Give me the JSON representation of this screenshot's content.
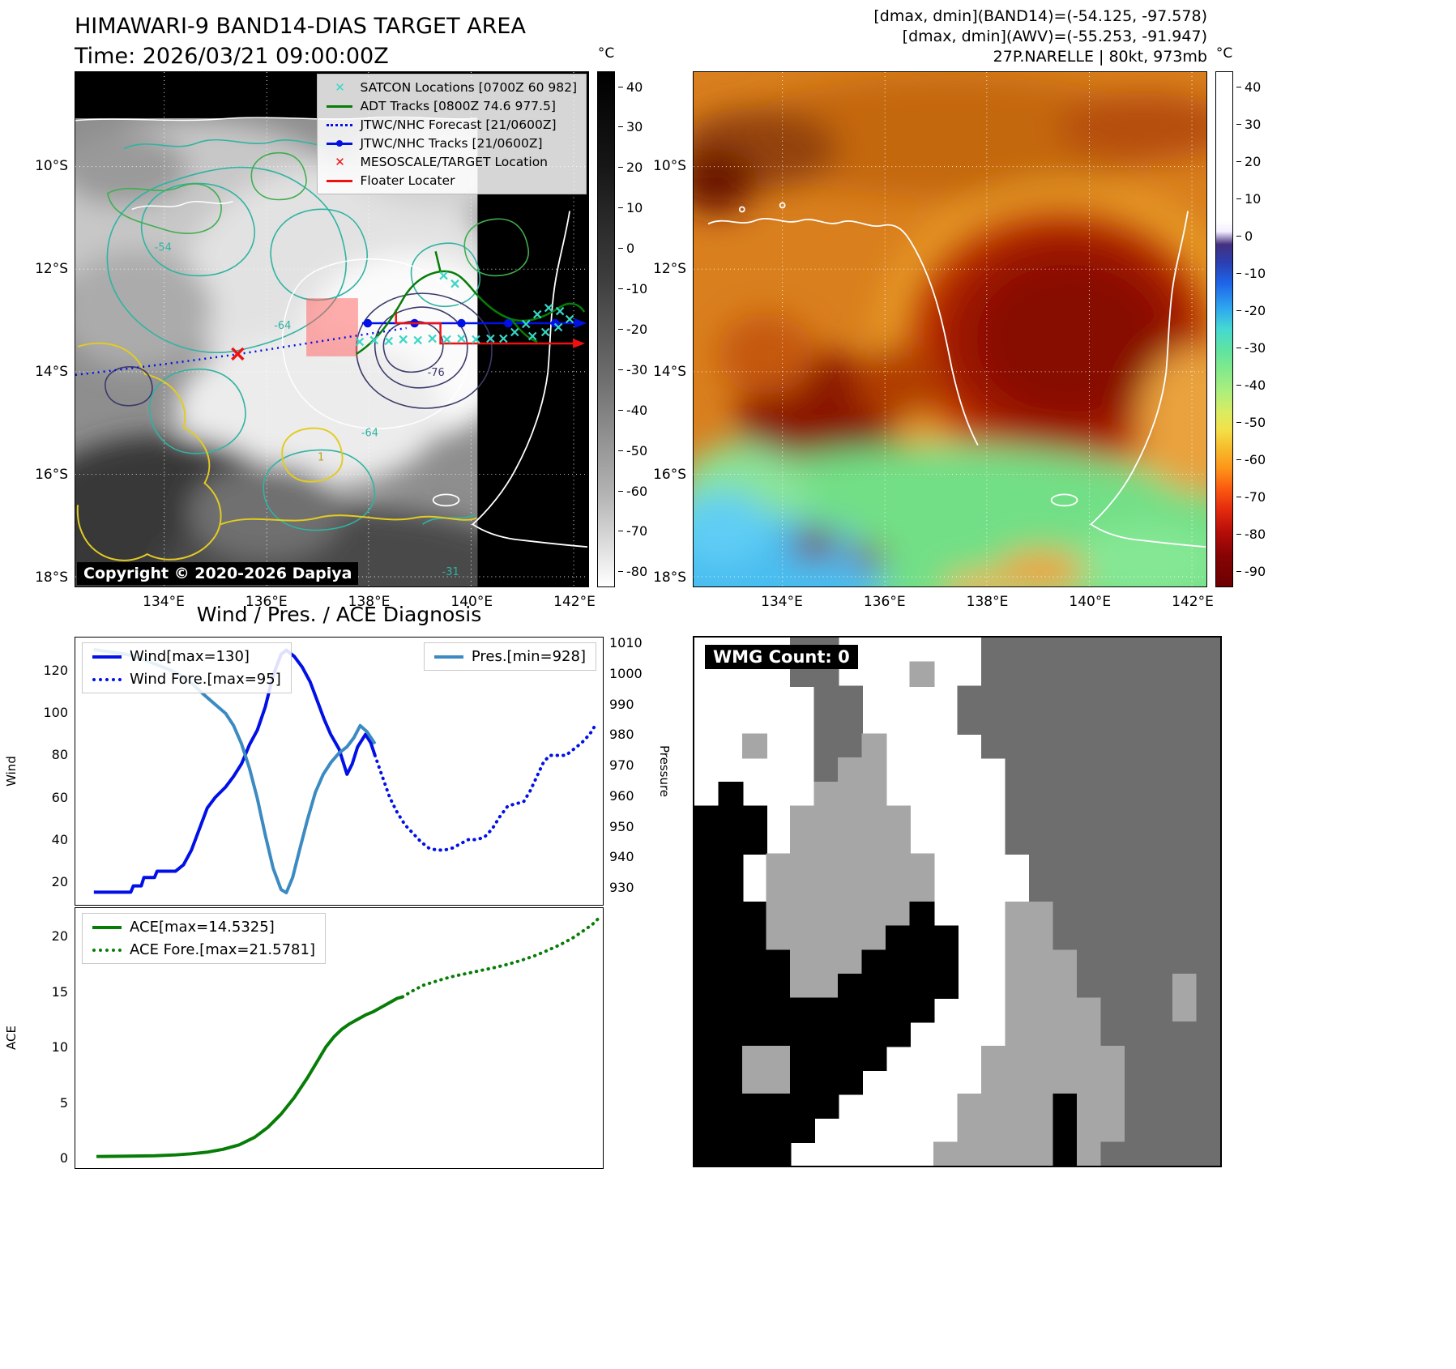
{
  "colors": {
    "wind": "#0010e6",
    "pressure": "#3b8bc2",
    "ace": "#077d07",
    "satcon": "#3ad6c6",
    "adt": "#077d07",
    "forecast": "#0010e6",
    "floater": "#ee1111",
    "target_box": "#ff5c5c"
  },
  "icons": {
    "x_marker": "✕"
  },
  "top_left": {
    "title": "HIMAWARI-9 BAND14-DIAS TARGET AREA",
    "subtitle": "Time: 2026/03/21 09:00:00Z",
    "copyright": "Copyright © 2020-2026 Dapiya",
    "legend": [
      "SATCON Locations [0700Z 60 982]",
      "ADT Tracks [0800Z 74.6 977.5]",
      "JTWC/NHC Forecast [21/0600Z]",
      "JTWC/NHC Tracks [21/0600Z]",
      "MESOSCALE/TARGET Location",
      "Floater Locater"
    ],
    "lat_ticks": [
      "10°S",
      "12°S",
      "14°S",
      "16°S",
      "18°S"
    ],
    "lon_ticks": [
      "134°E",
      "136°E",
      "138°E",
      "140°E",
      "142°E"
    ],
    "contour_labels": [
      "-54",
      "-64",
      "-76",
      "-64",
      "-31",
      "1"
    ],
    "colorbar": {
      "unit": "°C",
      "ticks": [
        "40",
        "30",
        "20",
        "10",
        "0",
        "-10",
        "-20",
        "-30",
        "-40",
        "-50",
        "-60",
        "-70",
        "-80"
      ]
    }
  },
  "top_right": {
    "header_lines": [
      "[dmax, dmin](BAND14)=(-54.125, -97.578)",
      "[dmax, dmin](AWV)=(-55.253, -91.947)",
      "27P.NARELLE | 80kt, 973mb"
    ],
    "lat_ticks": [
      "10°S",
      "12°S",
      "14°S",
      "16°S",
      "18°S"
    ],
    "lon_ticks": [
      "134°E",
      "136°E",
      "138°E",
      "140°E",
      "142°E"
    ],
    "colorbar": {
      "unit": "°C",
      "ticks": [
        "40",
        "30",
        "20",
        "10",
        "0",
        "-10",
        "-20",
        "-30",
        "-40",
        "-50",
        "-60",
        "-70",
        "-80",
        "-90"
      ]
    }
  },
  "bottom_left": {
    "title": "Wind / Pres. / ACE Diagnosis"
  },
  "bottom_right": {
    "label": "WMG Count: 0",
    "palette": {
      "W": "#ffffff",
      "L": "#a6a6a6",
      "D": "#6e6e6e",
      "B": "#000000"
    },
    "grid": [
      "WWWWDDWWWWWWDDDDDDDDDD",
      "WWWWDDWWWLWWDDDDDDDDDD",
      "WWWWWDDWWWWDDDDDDDDDDD",
      "WWWWWDDWWWWDDDDDDDDDDD",
      "WWLWWDDLWWWWDDDDDDDDDD",
      "WWWWWDLLWWWWWDDDDDDDDD",
      "WBWWWLLLWWWWWDDDDDDDDD",
      "BBBWLLLLLWWWWDDDDDDDDD",
      "BBBWLLLLLWWWWDDDDDDDDD",
      "BBWLLLLLLLWWWWDDDDDDDD",
      "BBWLLLLLLLWWWWDDDDDDDD",
      "BBBLLLLLLBWWWLLDDDDDDD",
      "BBBLLLLLBBBWWLLDDDDDDD",
      "BBBBLLLBBBBWWLLLDDDDDD",
      "BBBBLLBBBBBWWLLLDDDDLD",
      "BBBBBBBBBBWWWLLLLDDDLD",
      "BBBBBBBBBWWWWLLLLDDDDD",
      "BBLLBBBBWWWWLLLLLLDDDD",
      "BBLLBBBWWWWWLLLLLLDDDD",
      "BBBBBBWWWWWLLLLBLLDDDD",
      "BBBBBWWWWWWLLLLBLLDDDD",
      "BBBBWWWWWWLLLLLBLDDDDD"
    ]
  },
  "chart_data": [
    {
      "type": "line",
      "title": "Wind / Pres. / ACE Diagnosis",
      "ylabel_left": "Wind",
      "ylabel_right": "Pressure",
      "ylim_left": [
        9,
        136
      ],
      "ylim_right": [
        924,
        1012
      ],
      "yticks_left": [
        "120",
        "100",
        "80",
        "60",
        "40",
        "20"
      ],
      "yticks_right": [
        "1010",
        "1000",
        "990",
        "980",
        "970",
        "960",
        "950",
        "940",
        "930"
      ],
      "legend_left": [
        "Wind[max=130]",
        "Wind Fore.[max=95]"
      ],
      "legend_right": [
        "Pres.[min=928]"
      ],
      "grid": false,
      "series": [
        {
          "name": "Wind",
          "color": "#0010e6",
          "style": "solid",
          "axis": "left",
          "width": 4,
          "points": [
            [
              0.035,
              15
            ],
            [
              0.09,
              15
            ],
            [
              0.105,
              15
            ],
            [
              0.11,
              18
            ],
            [
              0.125,
              18
            ],
            [
              0.13,
              22
            ],
            [
              0.15,
              22
            ],
            [
              0.155,
              25
            ],
            [
              0.19,
              25
            ],
            [
              0.205,
              28
            ],
            [
              0.22,
              35
            ],
            [
              0.235,
              45
            ],
            [
              0.25,
              55
            ],
            [
              0.265,
              60
            ],
            [
              0.285,
              65
            ],
            [
              0.3,
              70
            ],
            [
              0.315,
              76
            ],
            [
              0.33,
              85
            ],
            [
              0.345,
              92
            ],
            [
              0.36,
              103
            ],
            [
              0.375,
              118
            ],
            [
              0.39,
              128
            ],
            [
              0.4,
              130
            ],
            [
              0.415,
              127
            ],
            [
              0.43,
              122
            ],
            [
              0.445,
              115
            ],
            [
              0.46,
              105
            ],
            [
              0.472,
              97
            ],
            [
              0.484,
              90
            ],
            [
              0.5,
              83
            ],
            [
              0.515,
              71
            ],
            [
              0.525,
              76
            ],
            [
              0.535,
              84
            ],
            [
              0.55,
              90
            ],
            [
              0.56,
              86
            ],
            [
              0.568,
              80
            ]
          ]
        },
        {
          "name": "Wind Fore.",
          "color": "#0010e6",
          "style": "dotted",
          "axis": "left",
          "width": 4,
          "points": [
            [
              0.568,
              80
            ],
            [
              0.582,
              70
            ],
            [
              0.596,
              60
            ],
            [
              0.61,
              53
            ],
            [
              0.625,
              47
            ],
            [
              0.64,
              43
            ],
            [
              0.655,
              39
            ],
            [
              0.67,
              36
            ],
            [
              0.685,
              35
            ],
            [
              0.7,
              35
            ],
            [
              0.715,
              36
            ],
            [
              0.73,
              38
            ],
            [
              0.745,
              40
            ],
            [
              0.76,
              40
            ],
            [
              0.775,
              41
            ],
            [
              0.79,
              45
            ],
            [
              0.805,
              51
            ],
            [
              0.82,
              56
            ],
            [
              0.835,
              57
            ],
            [
              0.85,
              58
            ],
            [
              0.862,
              63
            ],
            [
              0.875,
              70
            ],
            [
              0.888,
              77
            ],
            [
              0.9,
              80
            ],
            [
              0.915,
              80
            ],
            [
              0.93,
              80
            ],
            [
              0.945,
              83
            ],
            [
              0.96,
              86
            ],
            [
              0.975,
              90
            ],
            [
              0.985,
              94
            ]
          ]
        },
        {
          "name": "Pres.",
          "color": "#3b8bc2",
          "style": "solid",
          "axis": "right",
          "width": 4,
          "points": [
            [
              0.035,
              1008
            ],
            [
              0.08,
              1007
            ],
            [
              0.11,
              1006
            ],
            [
              0.14,
              1004
            ],
            [
              0.17,
              1002
            ],
            [
              0.195,
              1000
            ],
            [
              0.22,
              997
            ],
            [
              0.245,
              993
            ],
            [
              0.265,
              990
            ],
            [
              0.285,
              987
            ],
            [
              0.3,
              983
            ],
            [
              0.315,
              977
            ],
            [
              0.33,
              969
            ],
            [
              0.345,
              959
            ],
            [
              0.36,
              947
            ],
            [
              0.375,
              936
            ],
            [
              0.39,
              929
            ],
            [
              0.4,
              928
            ],
            [
              0.412,
              933
            ],
            [
              0.425,
              942
            ],
            [
              0.44,
              952
            ],
            [
              0.455,
              961
            ],
            [
              0.47,
              967
            ],
            [
              0.485,
              971
            ],
            [
              0.5,
              974
            ],
            [
              0.515,
              976
            ],
            [
              0.528,
              979
            ],
            [
              0.54,
              983
            ],
            [
              0.553,
              981
            ],
            [
              0.568,
              977
            ]
          ]
        }
      ]
    },
    {
      "type": "line",
      "ylabel_left": "ACE",
      "ylim_left": [
        -1,
        22.6
      ],
      "yticks_left": [
        "20",
        "15",
        "10",
        "5",
        "0"
      ],
      "legend_left": [
        "ACE[max=14.5325]",
        "ACE Fore.[max=21.5781]"
      ],
      "grid": false,
      "series": [
        {
          "name": "ACE",
          "color": "#077d07",
          "style": "solid",
          "axis": "left",
          "width": 4,
          "points": [
            [
              0.04,
              0.05
            ],
            [
              0.1,
              0.08
            ],
            [
              0.15,
              0.12
            ],
            [
              0.19,
              0.2
            ],
            [
              0.22,
              0.3
            ],
            [
              0.25,
              0.45
            ],
            [
              0.28,
              0.7
            ],
            [
              0.31,
              1.1
            ],
            [
              0.34,
              1.8
            ],
            [
              0.365,
              2.7
            ],
            [
              0.39,
              3.9
            ],
            [
              0.415,
              5.4
            ],
            [
              0.44,
              7.2
            ],
            [
              0.46,
              8.8
            ],
            [
              0.475,
              10.0
            ],
            [
              0.49,
              10.9
            ],
            [
              0.505,
              11.6
            ],
            [
              0.52,
              12.1
            ],
            [
              0.535,
              12.5
            ],
            [
              0.55,
              12.9
            ],
            [
              0.565,
              13.2
            ],
            [
              0.58,
              13.6
            ],
            [
              0.595,
              14.0
            ],
            [
              0.61,
              14.4
            ],
            [
              0.62,
              14.53
            ]
          ]
        },
        {
          "name": "ACE Fore.",
          "color": "#077d07",
          "style": "dotted",
          "axis": "left",
          "width": 4,
          "points": [
            [
              0.62,
              14.53
            ],
            [
              0.64,
              15.1
            ],
            [
              0.66,
              15.6
            ],
            [
              0.68,
              15.9
            ],
            [
              0.7,
              16.2
            ],
            [
              0.72,
              16.45
            ],
            [
              0.745,
              16.7
            ],
            [
              0.77,
              16.95
            ],
            [
              0.795,
              17.2
            ],
            [
              0.82,
              17.5
            ],
            [
              0.845,
              17.85
            ],
            [
              0.87,
              18.25
            ],
            [
              0.895,
              18.75
            ],
            [
              0.92,
              19.3
            ],
            [
              0.945,
              19.95
            ],
            [
              0.965,
              20.6
            ],
            [
              0.98,
              21.1
            ],
            [
              0.99,
              21.58
            ]
          ]
        }
      ]
    }
  ]
}
